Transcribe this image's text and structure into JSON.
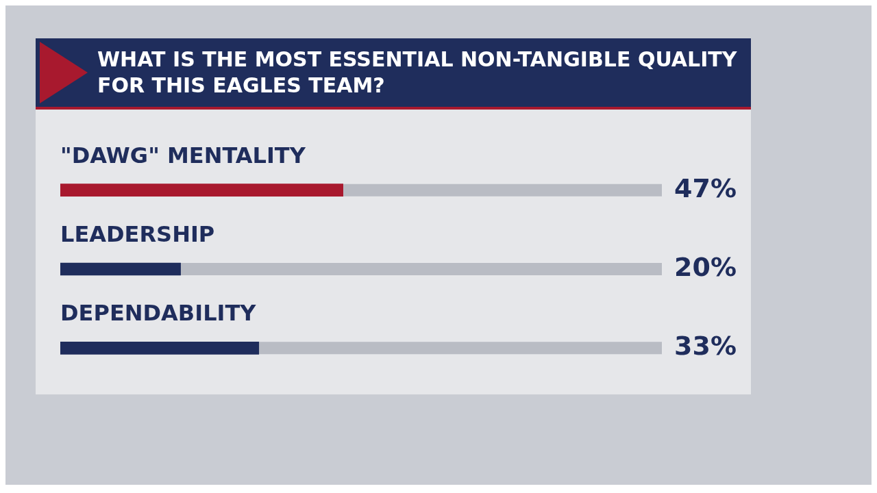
{
  "chart_data": {
    "type": "bar",
    "orientation": "horizontal",
    "title": "WHAT IS THE MOST ESSENTIAL NON-TANGIBLE QUALITY FOR THIS EAGLES TEAM?",
    "categories": [
      "\"DAWG\" MENTALITY",
      "LEADERSHIP",
      "DEPENDABILITY"
    ],
    "values": [
      47,
      20,
      33
    ],
    "colors": [
      "#a8192e",
      "#1f2d5c",
      "#1f2d5c"
    ],
    "value_labels": [
      "47%",
      "20%",
      "33%"
    ],
    "xlim": [
      0,
      100
    ]
  }
}
